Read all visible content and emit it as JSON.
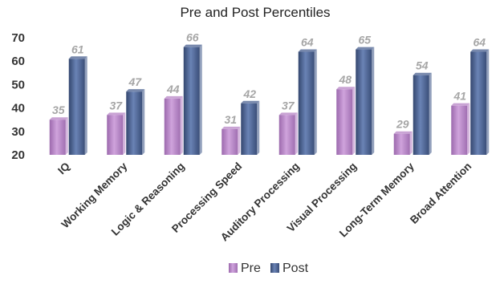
{
  "chart_data": {
    "type": "bar",
    "title": "Pre and Post Percentiles",
    "xlabel": "",
    "ylabel": "",
    "ylim": [
      20,
      70
    ],
    "yticks": [
      20,
      30,
      40,
      50,
      60,
      70
    ],
    "grid": false,
    "legend_position": "bottom",
    "categories": [
      "IQ",
      "Working Memory",
      "Logic & Reasoning",
      "Processing Speed",
      "Auditory Processing",
      "Visual Processing",
      "Long-Term Memory",
      "Broad Attention"
    ],
    "series": [
      {
        "name": "Pre",
        "color": "#b784c6",
        "values": [
          35,
          37,
          44,
          31,
          37,
          48,
          29,
          41
        ]
      },
      {
        "name": "Post",
        "color": "#4a6090",
        "values": [
          61,
          47,
          66,
          42,
          64,
          65,
          54,
          64
        ]
      }
    ]
  }
}
